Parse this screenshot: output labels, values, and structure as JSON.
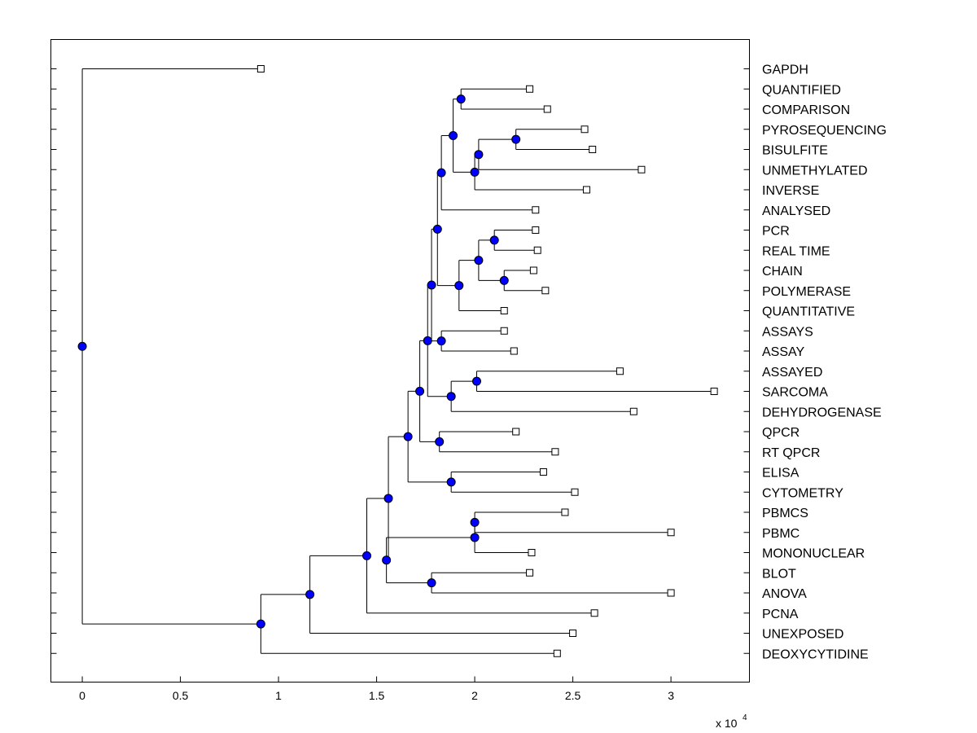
{
  "chart_data": {
    "type": "dendrogram",
    "title": "",
    "xlabel": "",
    "ylabel": "",
    "x_multiplier": "x 10",
    "x_multiplier_exponent": "4",
    "xlim": [
      -0.16,
      3.4
    ],
    "x_ticks": [
      {
        "value": 0,
        "label": "0"
      },
      {
        "value": 0.5,
        "label": "0.5"
      },
      {
        "value": 1,
        "label": "1"
      },
      {
        "value": 1.5,
        "label": "1.5"
      },
      {
        "value": 2,
        "label": "2"
      },
      {
        "value": 2.5,
        "label": "2.5"
      },
      {
        "value": 3,
        "label": "3"
      }
    ],
    "node_color": "#0000ff",
    "leaves": [
      {
        "label": "GAPDH",
        "value": 0.91
      },
      {
        "label": "QUANTIFIED",
        "value": 2.28
      },
      {
        "label": "COMPARISON",
        "value": 2.37
      },
      {
        "label": "PYROSEQUENCING",
        "value": 2.56
      },
      {
        "label": "BISULFITE",
        "value": 2.6
      },
      {
        "label": "UNMETHYLATED",
        "value": 2.85
      },
      {
        "label": "INVERSE",
        "value": 2.57
      },
      {
        "label": "ANALYSED",
        "value": 2.31
      },
      {
        "label": "PCR",
        "value": 2.31
      },
      {
        "label": "REAL TIME",
        "value": 2.32
      },
      {
        "label": "CHAIN",
        "value": 2.3
      },
      {
        "label": "POLYMERASE",
        "value": 2.36
      },
      {
        "label": "QUANTITATIVE",
        "value": 2.15
      },
      {
        "label": "ASSAYS",
        "value": 2.15
      },
      {
        "label": "ASSAY",
        "value": 2.2
      },
      {
        "label": "ASSAYED",
        "value": 2.74
      },
      {
        "label": "SARCOMA",
        "value": 3.22
      },
      {
        "label": "DEHYDROGENASE",
        "value": 2.81
      },
      {
        "label": "QPCR",
        "value": 2.21
      },
      {
        "label": "RT QPCR",
        "value": 2.41
      },
      {
        "label": "ELISA",
        "value": 2.35
      },
      {
        "label": "CYTOMETRY",
        "value": 2.51
      },
      {
        "label": "PBMCS",
        "value": 2.46
      },
      {
        "label": "PBMC",
        "value": 3.0
      },
      {
        "label": "MONONUCLEAR",
        "value": 2.29
      },
      {
        "label": "BLOT",
        "value": 2.28
      },
      {
        "label": "ANOVA",
        "value": 3.0
      },
      {
        "label": "PCNA",
        "value": 2.61
      },
      {
        "label": "UNEXPOSED",
        "value": 2.5
      },
      {
        "label": "DEOXYCYTIDINE",
        "value": 2.42
      }
    ],
    "nodes": [
      {
        "id": "Q1",
        "value": 1.93,
        "children": [
          "L1",
          "L2"
        ]
      },
      {
        "id": "Q2",
        "value": 2.21,
        "children": [
          "L3",
          "L4"
        ]
      },
      {
        "id": "Q3",
        "value": 2.02,
        "children": [
          "Q2",
          "L5"
        ]
      },
      {
        "id": "Q4",
        "value": 2.0,
        "children": [
          "Q3",
          "L6"
        ]
      },
      {
        "id": "Q5",
        "value": 1.89,
        "children": [
          "Q1",
          "Q4"
        ]
      },
      {
        "id": "Q6",
        "value": 1.83,
        "children": [
          "Q5",
          "L7"
        ]
      },
      {
        "id": "Q7",
        "value": 2.1,
        "children": [
          "L8",
          "L9"
        ]
      },
      {
        "id": "Q8",
        "value": 2.15,
        "children": [
          "L10",
          "L11"
        ]
      },
      {
        "id": "Q9",
        "value": 2.02,
        "children": [
          "Q7",
          "Q8"
        ]
      },
      {
        "id": "Q10",
        "value": 1.92,
        "children": [
          "Q9",
          "L12"
        ]
      },
      {
        "id": "Q11",
        "value": 1.81,
        "children": [
          "Q6",
          "Q10"
        ]
      },
      {
        "id": "Q12",
        "value": 1.83,
        "children": [
          "L13",
          "L14"
        ]
      },
      {
        "id": "Q13",
        "value": 1.78,
        "children": [
          "Q11",
          "Q12"
        ]
      },
      {
        "id": "Q14",
        "value": 2.01,
        "children": [
          "L15",
          "L16"
        ]
      },
      {
        "id": "Q15",
        "value": 1.88,
        "children": [
          "Q14",
          "L17"
        ]
      },
      {
        "id": "Q16",
        "value": 1.76,
        "children": [
          "Q13",
          "Q15"
        ]
      },
      {
        "id": "Q17",
        "value": 1.82,
        "children": [
          "L18",
          "L19"
        ]
      },
      {
        "id": "Q18",
        "value": 1.72,
        "children": [
          "Q16",
          "Q17"
        ]
      },
      {
        "id": "Q19",
        "value": 1.88,
        "children": [
          "L20",
          "L21"
        ]
      },
      {
        "id": "Q20",
        "value": 1.66,
        "children": [
          "Q18",
          "Q19"
        ]
      },
      {
        "id": "Q21",
        "value": 2.0,
        "children": [
          "L22",
          "L23"
        ]
      },
      {
        "id": "Q22",
        "value": 2.0,
        "children": [
          "Q21",
          "L24"
        ]
      },
      {
        "id": "Q23",
        "value": 1.78,
        "children": [
          "L25",
          "L26"
        ]
      },
      {
        "id": "Q24",
        "value": 1.55,
        "children": [
          "Q22",
          "Q23"
        ]
      },
      {
        "id": "Q25",
        "value": 1.56,
        "children": [
          "Q20",
          "Q24"
        ]
      },
      {
        "id": "Q26",
        "value": 1.45,
        "children": [
          "Q25",
          "L27"
        ]
      },
      {
        "id": "Q27",
        "value": 1.16,
        "children": [
          "Q26",
          "L28"
        ]
      },
      {
        "id": "Q28",
        "value": 0.91,
        "children": [
          "Q27",
          "L29"
        ]
      },
      {
        "id": "Q29",
        "value": 0.0,
        "children": [
          "L0",
          "Q28"
        ]
      }
    ]
  }
}
